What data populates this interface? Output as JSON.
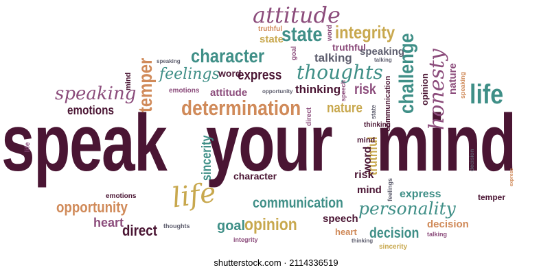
{
  "colors": {
    "plum": "#4a1533",
    "mauve": "#8c4d7c",
    "teal": "#3f8f87",
    "mustard": "#c8a84e",
    "orange": "#d08a59",
    "slate": "#5e5e6e"
  },
  "headline": {
    "word1": "speak",
    "word2": "your",
    "word3": "mind"
  },
  "words": {
    "attitude_top": "attitude",
    "truthful_a": "truthful",
    "word_a": "word",
    "state_a": "state",
    "integrity_a": "integrity",
    "truthful_b": "truthful",
    "goal_a": "goal",
    "talking_a": "talking",
    "speaking_a": "speaking",
    "talking_b": "talking",
    "temper_a": "temper",
    "character_a": "character",
    "challenge_a": "challenge",
    "honesty_a": "honesty",
    "mind_a": "mind",
    "speaking_b": "speaking",
    "feelings_a": "feelings",
    "word_b": "word",
    "express_a": "express",
    "thoughts_a": "thoughts",
    "opinion_a": "opinion",
    "nature_a": "nature",
    "speaking_c": "speaking",
    "emotions_a": "emotions",
    "attitude_b": "attitude",
    "opportunity_a": "opportunity",
    "thinking_a": "thinking",
    "risk_a": "risk",
    "speech_a": "speech",
    "life_a": "life",
    "emotions_b": "emotions",
    "determination_a": "determination",
    "nature_b": "nature",
    "state_b": "state",
    "communication_a": "communication",
    "thinking_b": "thinking",
    "life_b": "life",
    "sincerity_a": "sincerity",
    "truthful_c": "truthful",
    "word_c": "word",
    "mind_b": "mind",
    "risk_b": "risk",
    "character_b": "character",
    "express_b": "express",
    "temper_b": "temper",
    "emotions_c": "emotions",
    "opportunity_b": "opportunity",
    "life_c": "life",
    "communication_b": "communication",
    "personality_a": "personality",
    "heart_a": "heart",
    "direct_a": "direct",
    "goal_b": "goal",
    "opinion_b": "opinion",
    "speech_b": "speech",
    "decision_a": "decision",
    "decision_b": "decision",
    "heart_b": "heart",
    "thoughts_b": "thoughts",
    "integrity_b": "integrity",
    "thinking_c": "thinking",
    "sincerity_b": "sincerity",
    "talking_c": "talking",
    "direct_b": "direct",
    "express_c": "express",
    "mind_c": "mind",
    "feelings_b": "feelings"
  },
  "watermark": "shutterstock.com · 2114336519"
}
